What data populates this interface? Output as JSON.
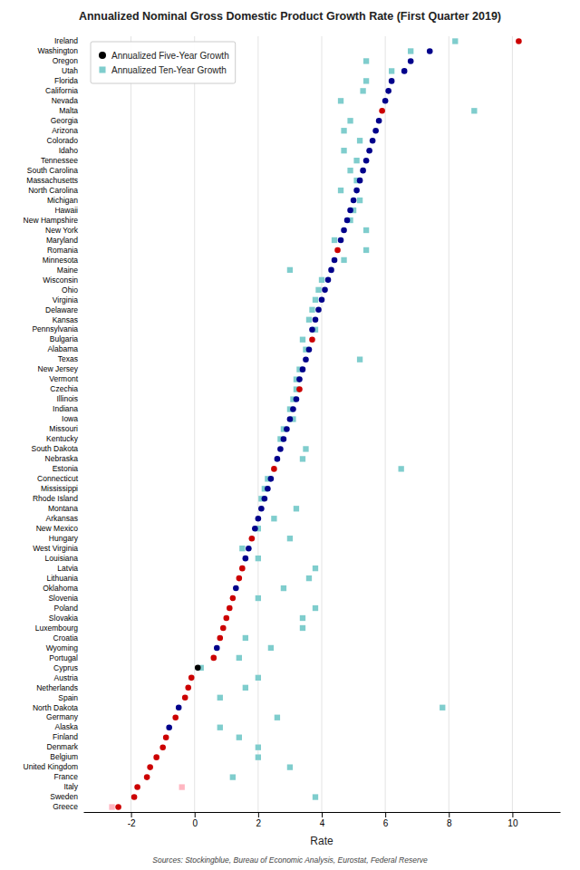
{
  "chart_data": {
    "type": "dot",
    "title": "Annualized Nominal Gross Domestic Product Growth Rate (First Quarter 2019)",
    "x_label": "Rate",
    "annotations": [
      "Sources: Stockingblue, Bureau of Economic Analysis, Eurostat, Federal Reserve"
    ],
    "orientation": "horizontal",
    "grid": true,
    "legend": "top-left",
    "xlim": [
      -3.5,
      11.5
    ],
    "xticks": [
      -2,
      0,
      2,
      4,
      6,
      8,
      10
    ],
    "categories": [
      "Ireland",
      "Washington",
      "Oregon",
      "Utah",
      "Florida",
      "California",
      "Nevada",
      "Malta",
      "Georgia",
      "Arizona",
      "Colorado",
      "Idaho",
      "Tennessee",
      "South Carolina",
      "Massachusetts",
      "North Carolina",
      "Michigan",
      "Hawaii",
      "New Hampshire",
      "New York",
      "Maryland",
      "Romania",
      "Minnesota",
      "Maine",
      "Wisconsin",
      "Ohio",
      "Virginia",
      "Delaware",
      "Kansas",
      "Pennsylvania",
      "Bulgaria",
      "Alabama",
      "Texas",
      "New Jersey",
      "Vermont",
      "Czechia",
      "Illinois",
      "Indiana",
      "Iowa",
      "Missouri",
      "Kentucky",
      "South Dakota",
      "Nebraska",
      "Estonia",
      "Connecticut",
      "Mississippi",
      "Rhode Island",
      "Montana",
      "Arkansas",
      "New Mexico",
      "Hungary",
      "West Virginia",
      "Louisiana",
      "Latvia",
      "Lithuania",
      "Oklahoma",
      "Slovenia",
      "Poland",
      "Slovakia",
      "Luxembourg",
      "Croatia",
      "Wyoming",
      "Portugal",
      "Cyprus",
      "Austria",
      "Netherlands",
      "Spain",
      "North Dakota",
      "Germany",
      "Alaska",
      "Finland",
      "Denmark",
      "Belgium",
      "United Kingdom",
      "France",
      "Italy",
      "Sweden",
      "Greece"
    ],
    "series": [
      {
        "name": "Annualized Five-Year Growth",
        "marker": "circle",
        "color": "#000000",
        "colors": [
          "#CC0000",
          "#00008B",
          "#00008B",
          "#00008B",
          "#00008B",
          "#00008B",
          "#00008B",
          "#CC0000",
          "#00008B",
          "#00008B",
          "#00008B",
          "#00008B",
          "#00008B",
          "#00008B",
          "#00008B",
          "#00008B",
          "#00008B",
          "#00008B",
          "#00008B",
          "#00008B",
          "#00008B",
          "#CC0000",
          "#00008B",
          "#00008B",
          "#00008B",
          "#00008B",
          "#00008B",
          "#00008B",
          "#00008B",
          "#00008B",
          "#CC0000",
          "#00008B",
          "#00008B",
          "#00008B",
          "#00008B",
          "#CC0000",
          "#00008B",
          "#00008B",
          "#00008B",
          "#00008B",
          "#00008B",
          "#00008B",
          "#00008B",
          "#CC0000",
          "#00008B",
          "#00008B",
          "#00008B",
          "#00008B",
          "#00008B",
          "#00008B",
          "#CC0000",
          "#00008B",
          "#00008B",
          "#CC0000",
          "#CC0000",
          "#00008B",
          "#CC0000",
          "#CC0000",
          "#CC0000",
          "#CC0000",
          "#CC0000",
          "#00008B",
          "#CC0000",
          "#000000",
          "#CC0000",
          "#CC0000",
          "#CC0000",
          "#00008B",
          "#CC0000",
          "#00008B",
          "#CC0000",
          "#CC0000",
          "#CC0000",
          "#CC0000",
          "#CC0000",
          "#CC0000",
          "#CC0000",
          "#CC0000"
        ],
        "values": [
          10.2,
          7.4,
          6.8,
          6.6,
          6.2,
          6.1,
          6.0,
          5.9,
          5.8,
          5.7,
          5.6,
          5.5,
          5.4,
          5.3,
          5.2,
          5.1,
          5.0,
          4.9,
          4.8,
          4.7,
          4.6,
          4.5,
          4.4,
          4.3,
          4.2,
          4.1,
          4.0,
          3.9,
          3.8,
          3.7,
          3.7,
          3.6,
          3.5,
          3.4,
          3.3,
          3.3,
          3.2,
          3.1,
          3.0,
          2.9,
          2.8,
          2.7,
          2.6,
          2.5,
          2.4,
          2.3,
          2.2,
          2.1,
          2.0,
          1.9,
          1.8,
          1.7,
          1.6,
          1.5,
          1.4,
          1.3,
          1.2,
          1.1,
          1.0,
          0.9,
          0.8,
          0.7,
          0.6,
          0.1,
          -0.1,
          -0.2,
          -0.3,
          -0.5,
          -0.6,
          -0.8,
          -0.9,
          -1.0,
          -1.2,
          -1.4,
          -1.5,
          -1.8,
          -1.9,
          -2.4
        ]
      },
      {
        "name": "Annualized Ten-Year Growth",
        "marker": "square",
        "color": "#7FCDCD",
        "colors": [
          "#7FCDCD",
          "#7FCDCD",
          "#7FCDCD",
          "#7FCDCD",
          "#7FCDCD",
          "#7FCDCD",
          "#7FCDCD",
          "#7FCDCD",
          "#7FCDCD",
          "#7FCDCD",
          "#7FCDCD",
          "#7FCDCD",
          "#7FCDCD",
          "#7FCDCD",
          "#7FCDCD",
          "#7FCDCD",
          "#7FCDCD",
          "#7FCDCD",
          "#7FCDCD",
          "#7FCDCD",
          "#7FCDCD",
          "#7FCDCD",
          "#7FCDCD",
          "#7FCDCD",
          "#7FCDCD",
          "#7FCDCD",
          "#7FCDCD",
          "#7FCDCD",
          "#7FCDCD",
          "#7FCDCD",
          "#7FCDCD",
          "#7FCDCD",
          "#7FCDCD",
          "#7FCDCD",
          "#7FCDCD",
          "#7FCDCD",
          "#7FCDCD",
          "#7FCDCD",
          "#7FCDCD",
          "#7FCDCD",
          "#7FCDCD",
          "#7FCDCD",
          "#7FCDCD",
          "#7FCDCD",
          "#7FCDCD",
          "#7FCDCD",
          "#7FCDCD",
          "#7FCDCD",
          "#7FCDCD",
          "#7FCDCD",
          "#7FCDCD",
          "#7FCDCD",
          "#7FCDCD",
          "#7FCDCD",
          "#7FCDCD",
          "#7FCDCD",
          "#7FCDCD",
          "#7FCDCD",
          "#7FCDCD",
          "#7FCDCD",
          "#7FCDCD",
          "#7FCDCD",
          "#7FCDCD",
          "#7FCDCD",
          "#7FCDCD",
          "#7FCDCD",
          "#7FCDCD",
          "#7FCDCD",
          "#7FCDCD",
          "#7FCDCD",
          "#7FCDCD",
          "#7FCDCD",
          "#7FCDCD",
          "#7FCDCD",
          "#7FCDCD",
          "#FFB6C1",
          "#7FCDCD",
          "#FFB6C1"
        ],
        "values": [
          8.2,
          6.8,
          5.4,
          6.2,
          5.4,
          5.3,
          4.6,
          8.8,
          4.9,
          4.7,
          5.2,
          4.7,
          5.1,
          4.9,
          5.1,
          4.6,
          5.2,
          5.0,
          4.9,
          5.4,
          4.4,
          5.4,
          4.7,
          3.0,
          4.0,
          3.9,
          3.8,
          3.7,
          3.6,
          3.8,
          3.4,
          3.5,
          5.2,
          3.3,
          3.2,
          3.2,
          3.1,
          3.0,
          3.1,
          2.8,
          2.7,
          3.5,
          3.4,
          6.5,
          2.3,
          2.2,
          2.1,
          3.2,
          2.5,
          2.0,
          3.0,
          1.5,
          2.0,
          3.8,
          3.6,
          2.8,
          2.0,
          3.8,
          3.4,
          3.4,
          1.6,
          2.4,
          1.4,
          0.2,
          2.0,
          1.6,
          0.8,
          7.8,
          2.6,
          0.8,
          1.4,
          2.0,
          2.0,
          3.0,
          1.2,
          -0.4,
          3.8,
          -2.6
        ]
      }
    ]
  }
}
